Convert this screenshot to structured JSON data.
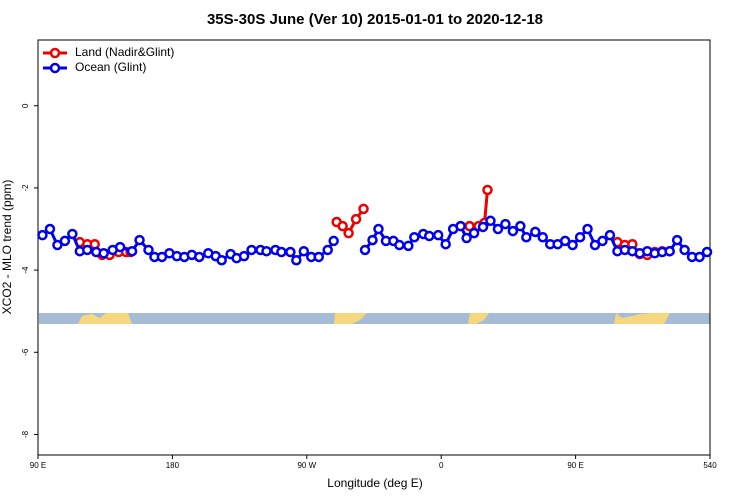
{
  "chart_data": {
    "type": "line",
    "title": "35S-30S June (Ver 10)   2015-01-01 to 2020-12-18",
    "xlabel": "Longitude (deg E)",
    "ylabel": "XCO2 - MLO trend (ppm)",
    "xlim": [
      90,
      540
    ],
    "ylim": [
      -8.5,
      1.6
    ],
    "xticks": [
      {
        "value": 90,
        "label": "90 E"
      },
      180,
      {
        "value": 270,
        "label": "90 W"
      },
      {
        "value": 360,
        "label": "0"
      },
      {
        "value": 450,
        "label": "90 E"
      },
      540
    ],
    "yticks": [
      -8,
      -6,
      -4,
      -2,
      0
    ],
    "legend": "topleft",
    "series": [
      {
        "name": "Land (Nadir&Glint)",
        "color": "#ee0000",
        "x": [
          118,
          123,
          128,
          133,
          138,
          144,
          149,
          152,
          null,
          290,
          294,
          298,
          303,
          308,
          null,
          379,
          385,
          389,
          391,
          null,
          478,
          483,
          488,
          493,
          498,
          503,
          508,
          513
        ],
        "values": [
          -3.32,
          -3.37,
          -3.37,
          -3.63,
          -3.63,
          -3.56,
          -3.56,
          -3.56,
          null,
          -2.83,
          -2.93,
          -3.1,
          -2.76,
          -2.51,
          null,
          -2.93,
          -2.93,
          -2.85,
          -2.05,
          null,
          -3.32,
          -3.39,
          -3.37,
          -3.61,
          -3.63,
          -3.56,
          -3.54,
          -3.54
        ]
      },
      {
        "name": "Ocean (Glint)",
        "color": "#0000ee",
        "x": [
          93,
          98,
          103,
          108,
          113,
          118,
          123,
          129,
          134,
          140,
          145,
          153,
          158,
          164,
          168,
          173,
          178,
          183,
          188,
          193,
          198,
          204,
          209,
          213,
          219,
          223,
          228,
          233,
          239,
          243,
          249,
          253,
          259,
          263,
          268,
          273,
          278,
          284,
          288,
          null,
          309,
          314,
          318,
          323,
          328,
          332,
          338,
          342,
          348,
          352,
          358,
          363,
          368,
          373,
          377,
          382,
          388,
          393,
          398,
          403,
          408,
          413,
          417,
          423,
          428,
          433,
          438,
          443,
          448,
          453,
          458,
          463,
          468,
          473,
          478,
          483,
          488,
          493,
          498,
          503,
          508,
          513,
          518,
          523,
          528,
          533,
          538
        ],
        "values": [
          -3.15,
          -3.0,
          -3.39,
          -3.29,
          -3.12,
          -3.54,
          -3.51,
          -3.56,
          -3.59,
          -3.51,
          -3.44,
          -3.54,
          -3.27,
          -3.51,
          -3.68,
          -3.68,
          -3.59,
          -3.66,
          -3.68,
          -3.63,
          -3.68,
          -3.59,
          -3.66,
          -3.76,
          -3.61,
          -3.71,
          -3.66,
          -3.51,
          -3.51,
          -3.54,
          -3.51,
          -3.56,
          -3.56,
          -3.76,
          -3.54,
          -3.68,
          -3.68,
          -3.51,
          -3.29,
          null,
          -3.51,
          -3.27,
          -3.0,
          -3.29,
          -3.29,
          -3.39,
          -3.41,
          -3.2,
          -3.12,
          -3.17,
          -3.15,
          -3.37,
          -3.0,
          -2.93,
          -3.22,
          -3.1,
          -2.95,
          -2.8,
          -3.0,
          -2.88,
          -3.05,
          -2.93,
          -3.2,
          -3.07,
          -3.2,
          -3.37,
          -3.37,
          -3.29,
          -3.39,
          -3.2,
          -3.0,
          -3.39,
          -3.29,
          -3.15,
          -3.54,
          -3.51,
          -3.54,
          -3.59,
          -3.54,
          -3.59,
          -3.56,
          -3.54,
          -3.27,
          -3.51,
          -3.68,
          -3.68,
          -3.56
        ]
      }
    ]
  }
}
